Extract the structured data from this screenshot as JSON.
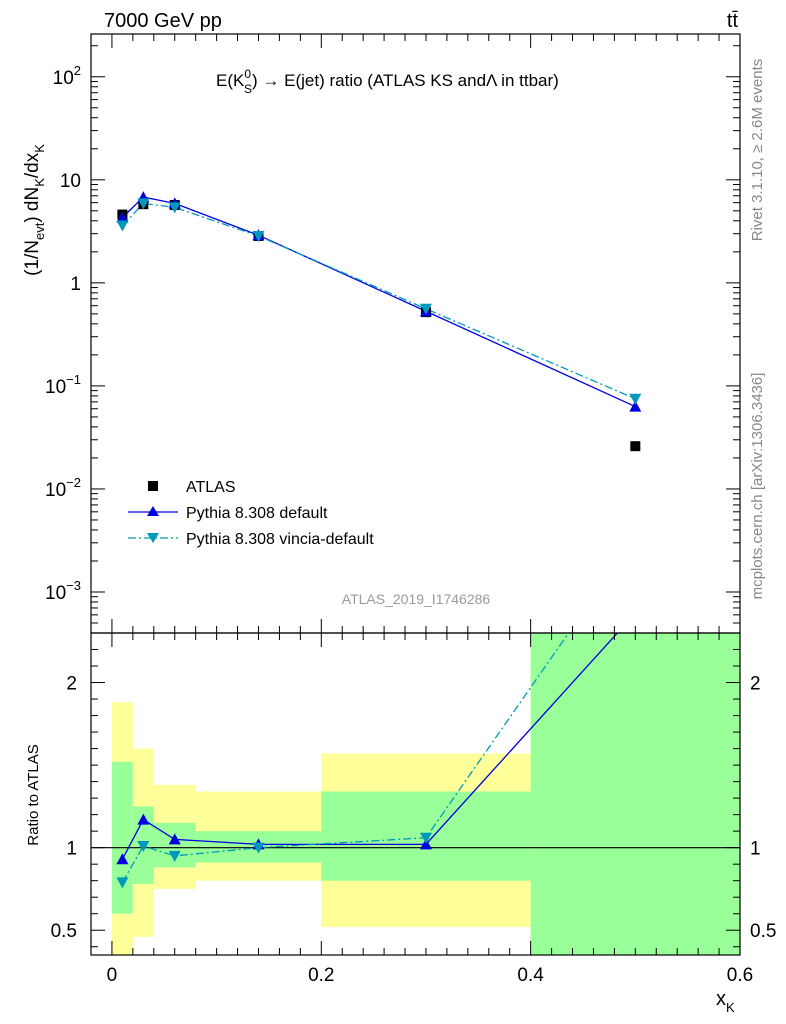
{
  "header": {
    "left": "7000 GeV pp",
    "right": "t t̄"
  },
  "side_labels": {
    "rivet": "Rivet 3.1.10, ≥ 2.6M events",
    "mcplots": "mcplots.cern.ch [arXiv:1306.3436]"
  },
  "chart_data": [
    {
      "panel": "main",
      "type": "line",
      "title_parts": {
        "prefix": "E(K",
        "sup": "0",
        "sub": "S",
        "suffix": ") → E(jet) ratio (ATLAS KS andΛ in ttbar)"
      },
      "ylabel_parts": {
        "a": "(1/N",
        "a_sub": "evt",
        "b": ") dN",
        "b_sub": "K",
        "c": "/dx",
        "c_sub": "K"
      },
      "yscale": "log",
      "ylim": [
        0.0004,
        260
      ],
      "xlim": [
        -0.02,
        0.6
      ],
      "y_ticks": [
        {
          "v": 0.001,
          "base": "10",
          "exp": "−3"
        },
        {
          "v": 0.01,
          "base": "10",
          "exp": "−2"
        },
        {
          "v": 0.1,
          "base": "10",
          "exp": "−1"
        },
        {
          "v": 1,
          "label": "1"
        },
        {
          "v": 10,
          "label": "10"
        },
        {
          "v": 100,
          "base": "10",
          "exp": "2"
        }
      ],
      "watermark": "ATLAS_2019_I1746286",
      "legend_position": "lower-left",
      "series": [
        {
          "name": "ATLAS",
          "marker": "square",
          "color": "#000000",
          "x": [
            0.01,
            0.03,
            0.06,
            0.14,
            0.3,
            0.5
          ],
          "y": [
            4.6,
            5.8,
            5.7,
            2.85,
            0.52,
            0.026
          ]
        },
        {
          "name": "Pythia 8.308 default",
          "marker": "triangle-up",
          "line": "solid",
          "color": "#0000dd",
          "x": [
            0.01,
            0.03,
            0.06,
            0.14,
            0.3,
            0.5
          ],
          "y": [
            4.3,
            6.8,
            5.9,
            2.9,
            0.53,
            0.063
          ]
        },
        {
          "name": "Pythia 8.308 vincia-default",
          "marker": "triangle-down",
          "line": "dash-dot",
          "color": "#0099bb",
          "x": [
            0.01,
            0.03,
            0.06,
            0.14,
            0.3,
            0.5
          ],
          "y": [
            3.6,
            5.9,
            5.4,
            2.85,
            0.56,
            0.075
          ]
        }
      ]
    },
    {
      "panel": "ratio",
      "type": "line",
      "ylabel": "Ratio to ATLAS",
      "ylim": [
        0.35,
        2.3
      ],
      "xlim": [
        -0.02,
        0.6
      ],
      "xlabel_base": "x",
      "xlabel_sub": "K",
      "y_ticks": [
        {
          "v": 0.5,
          "label": "0.5"
        },
        {
          "v": 1,
          "label": "1"
        },
        {
          "v": 2,
          "label": "2"
        }
      ],
      "x_ticks": [
        {
          "v": 0,
          "label": "0"
        },
        {
          "v": 0.2,
          "label": "0.2"
        },
        {
          "v": 0.4,
          "label": "0.4"
        },
        {
          "v": 0.6,
          "label": "0.6"
        }
      ],
      "uncertainty_bands": [
        {
          "x0": 0.0,
          "x1": 0.02,
          "yellow": [
            0.35,
            1.88
          ],
          "green": [
            0.6,
            1.52
          ]
        },
        {
          "x0": 0.02,
          "x1": 0.04,
          "yellow": [
            0.46,
            1.6
          ],
          "green": [
            0.78,
            1.25
          ]
        },
        {
          "x0": 0.04,
          "x1": 0.08,
          "yellow": [
            0.75,
            1.38
          ],
          "green": [
            0.88,
            1.15
          ]
        },
        {
          "x0": 0.08,
          "x1": 0.2,
          "yellow": [
            0.8,
            1.34
          ],
          "green": [
            0.91,
            1.1
          ]
        },
        {
          "x0": 0.2,
          "x1": 0.4,
          "yellow": [
            0.52,
            1.57
          ],
          "green": [
            0.8,
            1.34
          ]
        },
        {
          "x0": 0.4,
          "x1": 0.6,
          "yellow": [
            0.35,
            2.3
          ],
          "green": [
            0.35,
            2.3
          ]
        }
      ],
      "series": [
        {
          "name": "Pythia 8.308 default",
          "marker": "triangle-up",
          "line": "solid",
          "color": "#0000dd",
          "x": [
            0.01,
            0.03,
            0.06,
            0.14,
            0.3,
            0.5
          ],
          "y": [
            0.93,
            1.17,
            1.05,
            1.02,
            1.02,
            2.42
          ]
        },
        {
          "name": "Pythia 8.308 vincia-default",
          "marker": "triangle-down",
          "line": "dash-dot",
          "color": "#0099bb",
          "x": [
            0.01,
            0.03,
            0.06,
            0.14,
            0.3,
            0.5
          ],
          "y": [
            0.79,
            1.01,
            0.95,
            1.0,
            1.06,
            2.88
          ]
        }
      ]
    }
  ]
}
